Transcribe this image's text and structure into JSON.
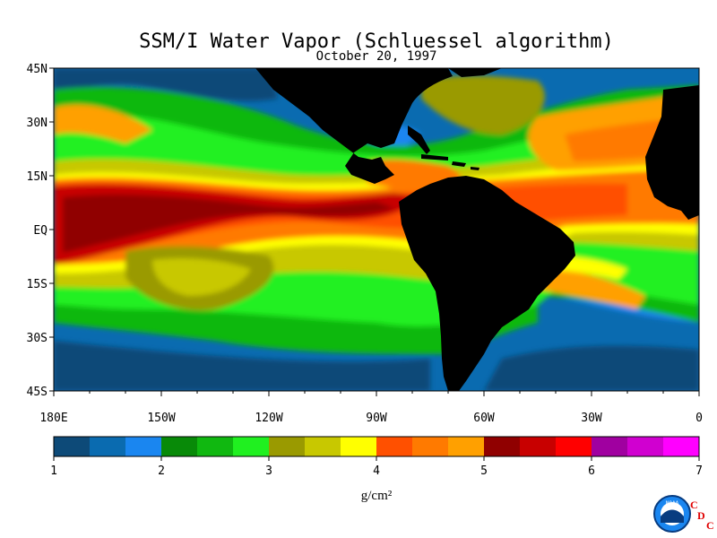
{
  "title": "SSM/I Water Vapor (Schluessel algorithm)",
  "subtitle": "October 20, 1997",
  "map": {
    "lon_range": [
      -180,
      0
    ],
    "lat_range": [
      -45,
      45
    ],
    "lat_ticks": [
      {
        "value": 45,
        "label": "45N"
      },
      {
        "value": 30,
        "label": "30N"
      },
      {
        "value": 15,
        "label": "15N"
      },
      {
        "value": 0,
        "label": "EQ"
      },
      {
        "value": -15,
        "label": "15S"
      },
      {
        "value": -30,
        "label": "30S"
      },
      {
        "value": -45,
        "label": "45S"
      }
    ],
    "lon_ticks": [
      {
        "value": -180,
        "label": "180E"
      },
      {
        "value": -150,
        "label": "150W"
      },
      {
        "value": -120,
        "label": "120W"
      },
      {
        "value": -90,
        "label": "90W"
      },
      {
        "value": -60,
        "label": "60W"
      },
      {
        "value": -30,
        "label": "30W"
      },
      {
        "value": 0,
        "label": "0"
      }
    ],
    "land_color": "#000000"
  },
  "colorbar": {
    "min": 1,
    "max": 7,
    "unit": "g/cm²",
    "tick_labels": [
      "1",
      "2",
      "3",
      "4",
      "5",
      "6",
      "7"
    ],
    "colors": [
      "#0d4a78",
      "#0a6bb0",
      "#1a86f0",
      "#088a08",
      "#10b810",
      "#20f020",
      "#9a9a00",
      "#c8c800",
      "#ffff00",
      "#ff5000",
      "#ff7a00",
      "#ffa000",
      "#900000",
      "#c80000",
      "#ff0000",
      "#a000a0",
      "#d000d0",
      "#ff00ff"
    ]
  },
  "logo": {
    "agency": "NOAA",
    "letters": [
      "C",
      "D",
      "C"
    ]
  }
}
